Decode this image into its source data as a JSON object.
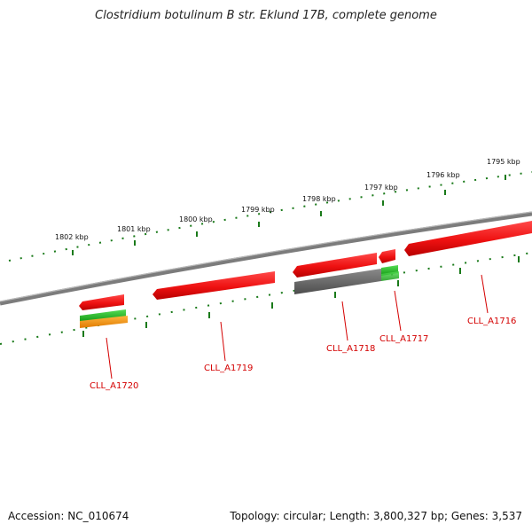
{
  "title": "Clostridium botulinum B str. Eklund 17B, complete genome",
  "footer": {
    "accession": "Accession: NC_010674",
    "summary": "Topology: circular; Length: 3,800,327 bp; Genes: 3,537"
  },
  "scale_labels": [
    "1802 kbp",
    "1801 kbp",
    "1800 kbp",
    "1799 kbp",
    "1798 kbp",
    "1797 kbp",
    "1796 kbp",
    "1795 kbp"
  ],
  "genes": [
    {
      "id": "CLL_A1720",
      "label": "CLL_A1720"
    },
    {
      "id": "CLL_A1719",
      "label": "CLL_A1719"
    },
    {
      "id": "CLL_A1718",
      "label": "CLL_A1718"
    },
    {
      "id": "CLL_A1717",
      "label": "CLL_A1717"
    },
    {
      "id": "CLL_A1716",
      "label": "CLL_A1716"
    }
  ],
  "colors": {
    "cds": "#ee1111",
    "grey_feature": "#666666",
    "green_feature": "#22bb22",
    "orange_feature": "#ff9900",
    "backbone": "#888888",
    "ticks": "#1a7a1a",
    "label": "#d40000"
  }
}
